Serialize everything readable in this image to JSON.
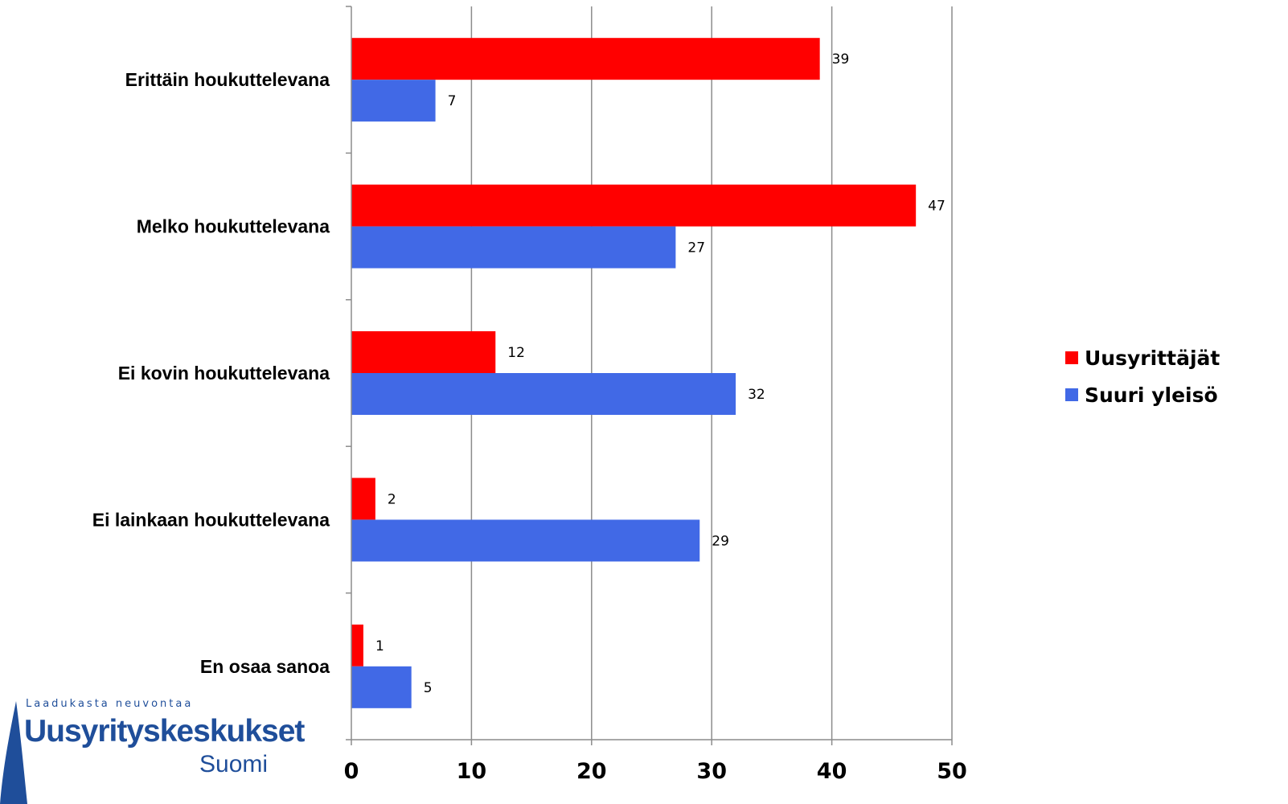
{
  "chart_data": {
    "type": "bar",
    "orientation": "horizontal",
    "categories": [
      "Erittäin houkuttelevana",
      "Melko houkuttelevana",
      "Ei kovin houkuttelevana",
      "Ei lainkaan houkuttelevana",
      "En osaa sanoa"
    ],
    "series": [
      {
        "name": "Uusyrittäjät",
        "color": "#ff0000",
        "values": [
          39,
          47,
          12,
          2,
          1
        ]
      },
      {
        "name": "Suuri yleisö",
        "color": "#4169e6",
        "values": [
          7,
          27,
          32,
          29,
          5
        ]
      }
    ],
    "title": "",
    "xlabel": "",
    "ylabel": "",
    "xlim": [
      0,
      50
    ],
    "xticks": [
      0,
      10,
      20,
      30,
      40,
      50
    ],
    "grid": true,
    "legend": "right"
  },
  "logo": {
    "tagline": "Laadukasta neuvontaa",
    "name": "Uusyrityskeskukset",
    "sub": "Suomi",
    "color": "#1f4e9a"
  }
}
